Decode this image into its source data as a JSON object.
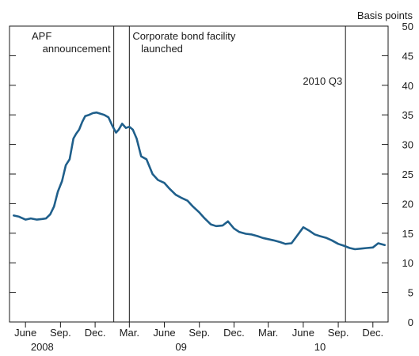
{
  "chart_data": {
    "type": "line",
    "y_unit_label": "Basis points",
    "ylim": [
      0,
      50
    ],
    "y_ticks": [
      0,
      5,
      10,
      15,
      20,
      25,
      30,
      35,
      40,
      45,
      50
    ],
    "xlim": [
      "2008-04-20",
      "2011-01-10"
    ],
    "x_ticks": [
      {
        "date": "2008-06-01",
        "label": "June"
      },
      {
        "date": "2008-09-01",
        "label": "Sep."
      },
      {
        "date": "2008-12-01",
        "label": "Dec."
      },
      {
        "date": "2009-03-01",
        "label": "Mar."
      },
      {
        "date": "2009-06-01",
        "label": "June"
      },
      {
        "date": "2009-09-01",
        "label": "Sep."
      },
      {
        "date": "2009-12-01",
        "label": "Dec."
      },
      {
        "date": "2010-03-01",
        "label": "Mar."
      },
      {
        "date": "2010-06-01",
        "label": "June"
      },
      {
        "date": "2010-09-01",
        "label": "Sep."
      },
      {
        "date": "2010-12-01",
        "label": "Dec."
      }
    ],
    "year_labels": [
      {
        "date": "2008-07-15",
        "label": "2008"
      },
      {
        "date": "2009-07-15",
        "label": "09"
      },
      {
        "date": "2010-07-15",
        "label": "10"
      }
    ],
    "annotations": [
      {
        "date": "2009-01-19",
        "lines": [
          "APF",
          "announcement"
        ],
        "side": "left"
      },
      {
        "date": "2009-03-01",
        "lines": [
          "Corporate bond facility",
          "   launched"
        ],
        "side": "right"
      },
      {
        "date": "2010-09-20",
        "lines": [
          "2010 Q3"
        ],
        "side": "left"
      }
    ],
    "line_color": "#1f5f8b",
    "series": [
      {
        "x": [
          "2008-05-01",
          "2008-05-15",
          "2008-06-01",
          "2008-06-15",
          "2008-07-01",
          "2008-07-15",
          "2008-07-25",
          "2008-08-05",
          "2008-08-15",
          "2008-08-25",
          "2008-09-05",
          "2008-09-15",
          "2008-09-25",
          "2008-10-05",
          "2008-10-12",
          "2008-10-20",
          "2008-10-28",
          "2008-11-05",
          "2008-11-15",
          "2008-11-25",
          "2008-12-05",
          "2008-12-15",
          "2008-12-25",
          "2009-01-05",
          "2009-01-15",
          "2009-01-25",
          "2009-02-01",
          "2009-02-10",
          "2009-02-20",
          "2009-03-01",
          "2009-03-10",
          "2009-03-20",
          "2009-04-01",
          "2009-04-15",
          "2009-05-01",
          "2009-05-15",
          "2009-06-01",
          "2009-06-15",
          "2009-07-01",
          "2009-07-15",
          "2009-08-01",
          "2009-08-15",
          "2009-09-01",
          "2009-09-15",
          "2009-10-01",
          "2009-10-15",
          "2009-11-01",
          "2009-11-15",
          "2009-12-01",
          "2009-12-15",
          "2010-01-01",
          "2010-01-15",
          "2010-02-01",
          "2010-02-15",
          "2010-03-01",
          "2010-03-15",
          "2010-04-01",
          "2010-04-15",
          "2010-05-01",
          "2010-05-15",
          "2010-06-01",
          "2010-06-15",
          "2010-07-01",
          "2010-07-15",
          "2010-08-01",
          "2010-08-15",
          "2010-09-01",
          "2010-09-15",
          "2010-10-01",
          "2010-10-15",
          "2010-11-01",
          "2010-11-15",
          "2010-12-01",
          "2010-12-15",
          "2011-01-01"
        ],
        "y": [
          18.0,
          17.8,
          17.3,
          17.5,
          17.3,
          17.4,
          17.5,
          18.2,
          19.5,
          22.0,
          23.8,
          26.5,
          27.5,
          31.0,
          31.8,
          32.5,
          33.8,
          34.8,
          35.0,
          35.3,
          35.4,
          35.2,
          35.0,
          34.6,
          33.2,
          32.0,
          32.5,
          33.5,
          32.8,
          33.0,
          32.5,
          31.0,
          28.0,
          27.5,
          25.0,
          24.0,
          23.5,
          22.5,
          21.5,
          21.0,
          20.5,
          19.5,
          18.5,
          17.5,
          16.5,
          16.2,
          16.3,
          17.0,
          15.8,
          15.2,
          14.9,
          14.8,
          14.5,
          14.2,
          14.0,
          13.8,
          13.5,
          13.2,
          13.3,
          14.5,
          16.0,
          15.5,
          14.8,
          14.5,
          14.2,
          13.8,
          13.2,
          12.9,
          12.5,
          12.3,
          12.4,
          12.5,
          12.6,
          13.3,
          13.0
        ]
      }
    ]
  }
}
